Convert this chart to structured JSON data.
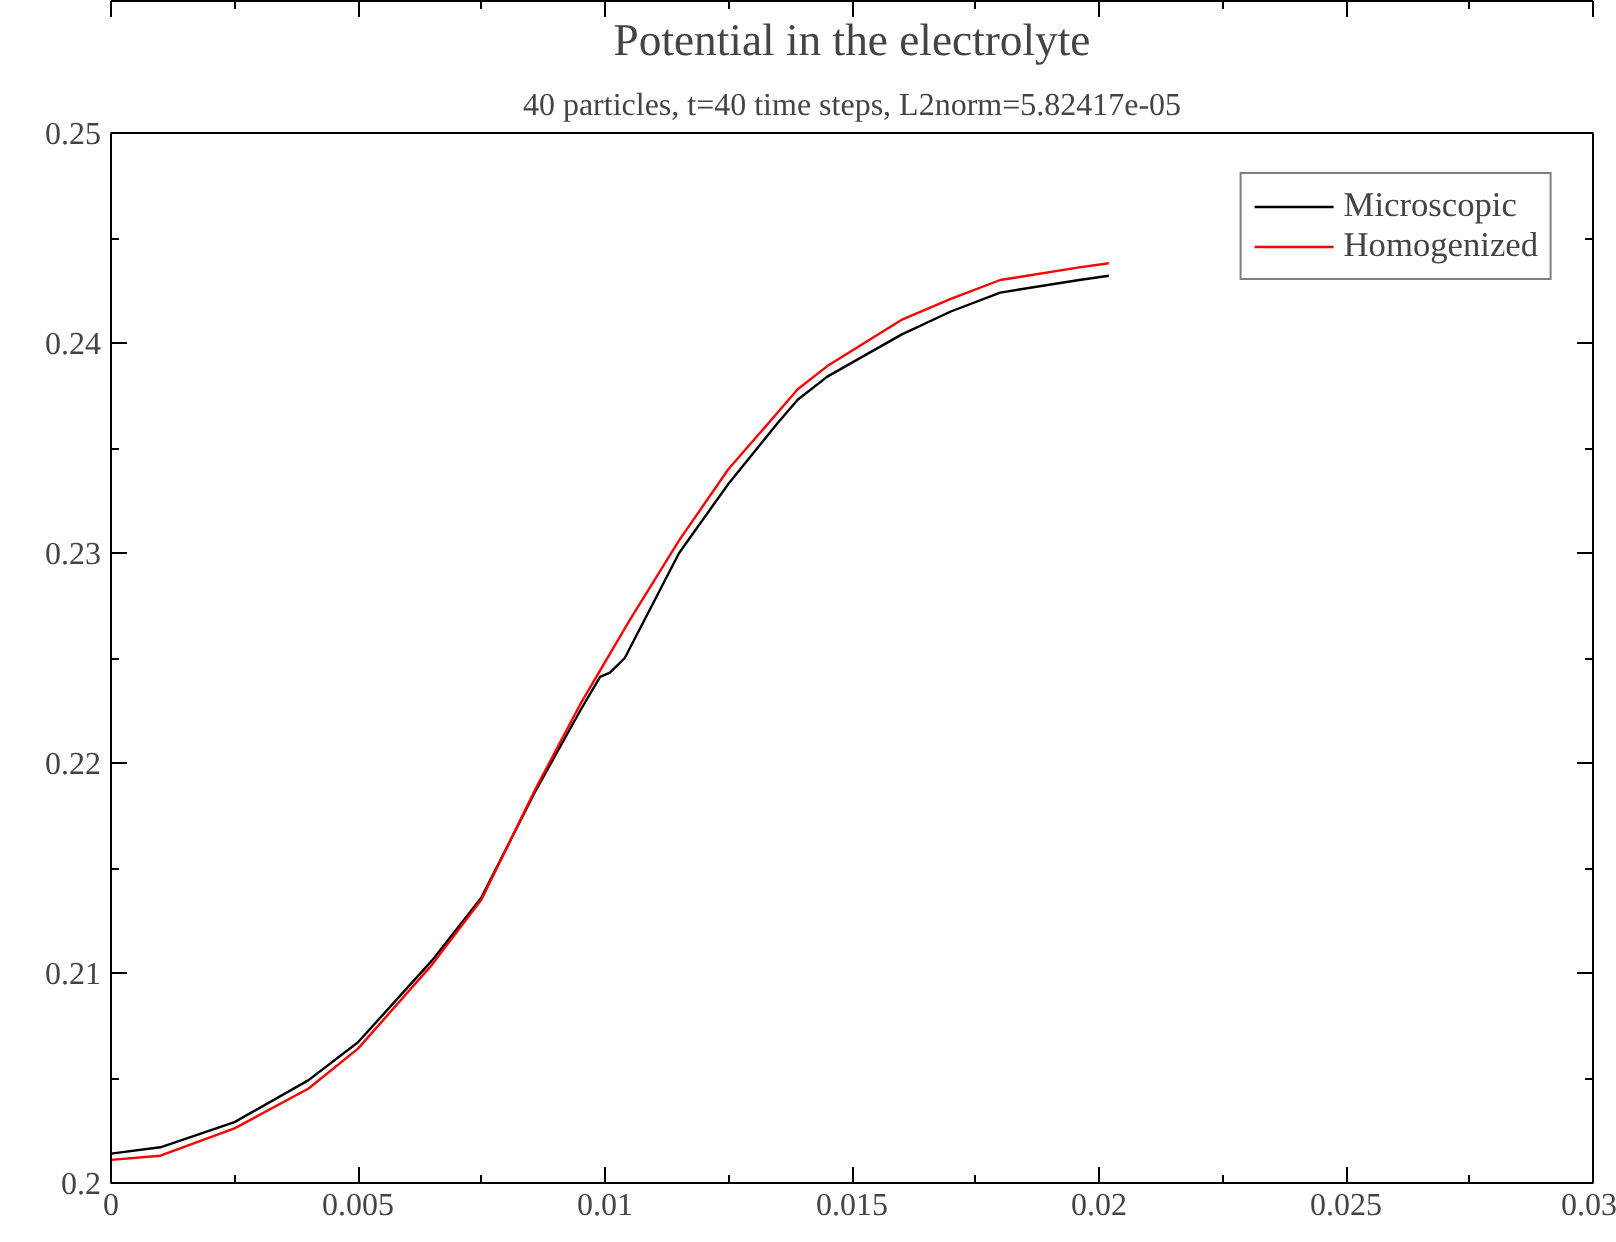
{
  "chart_data": {
    "type": "line",
    "title": "Potential in the electrolyte",
    "subtitle": "40 particles, t=40 time steps, L2norm=5.82417e-05",
    "series": [
      {
        "name": "Microscopic",
        "color": "#000000",
        "x": [
          0,
          0.001,
          0.0025,
          0.004,
          0.005,
          0.0065,
          0.0075,
          0.0086,
          0.0095,
          0.0099,
          0.0101,
          0.0104,
          0.0115,
          0.0125,
          0.0135,
          0.0139,
          0.0145,
          0.016,
          0.017,
          0.018,
          0.0196,
          0.0202
        ],
        "values": [
          0.2014,
          0.2017,
          0.2029,
          0.2049,
          0.2067,
          0.2106,
          0.2136,
          0.2187,
          0.2225,
          0.2241,
          0.2243,
          0.225,
          0.23,
          0.2333,
          0.2362,
          0.2373,
          0.2384,
          0.2404,
          0.2415,
          0.2424,
          0.243,
          0.2432
        ]
      },
      {
        "name": "Homogenized",
        "color": "#ff0000",
        "x": [
          0,
          0.001,
          0.0025,
          0.004,
          0.005,
          0.0065,
          0.0075,
          0.0086,
          0.0095,
          0.01,
          0.0105,
          0.0115,
          0.0125,
          0.0135,
          0.0139,
          0.0145,
          0.016,
          0.017,
          0.018,
          0.0196,
          0.0202
        ],
        "values": [
          0.2011,
          0.2013,
          0.2026,
          0.2045,
          0.2064,
          0.2104,
          0.2135,
          0.2188,
          0.2228,
          0.2248,
          0.2268,
          0.2306,
          0.234,
          0.2367,
          0.2378,
          0.2389,
          0.2411,
          0.2421,
          0.243,
          0.2436,
          0.2438
        ]
      }
    ],
    "xlim": [
      0,
      0.03
    ],
    "xticks": [
      0,
      0.005,
      0.01,
      0.015,
      0.02,
      0.025,
      0.03
    ],
    "ylim": [
      0.2,
      0.25
    ],
    "yticks": [
      0.2,
      0.21,
      0.22,
      0.23,
      0.24,
      0.25
    ],
    "grid": false,
    "legend": "top right",
    "marker": "none",
    "line_style": "solid"
  }
}
